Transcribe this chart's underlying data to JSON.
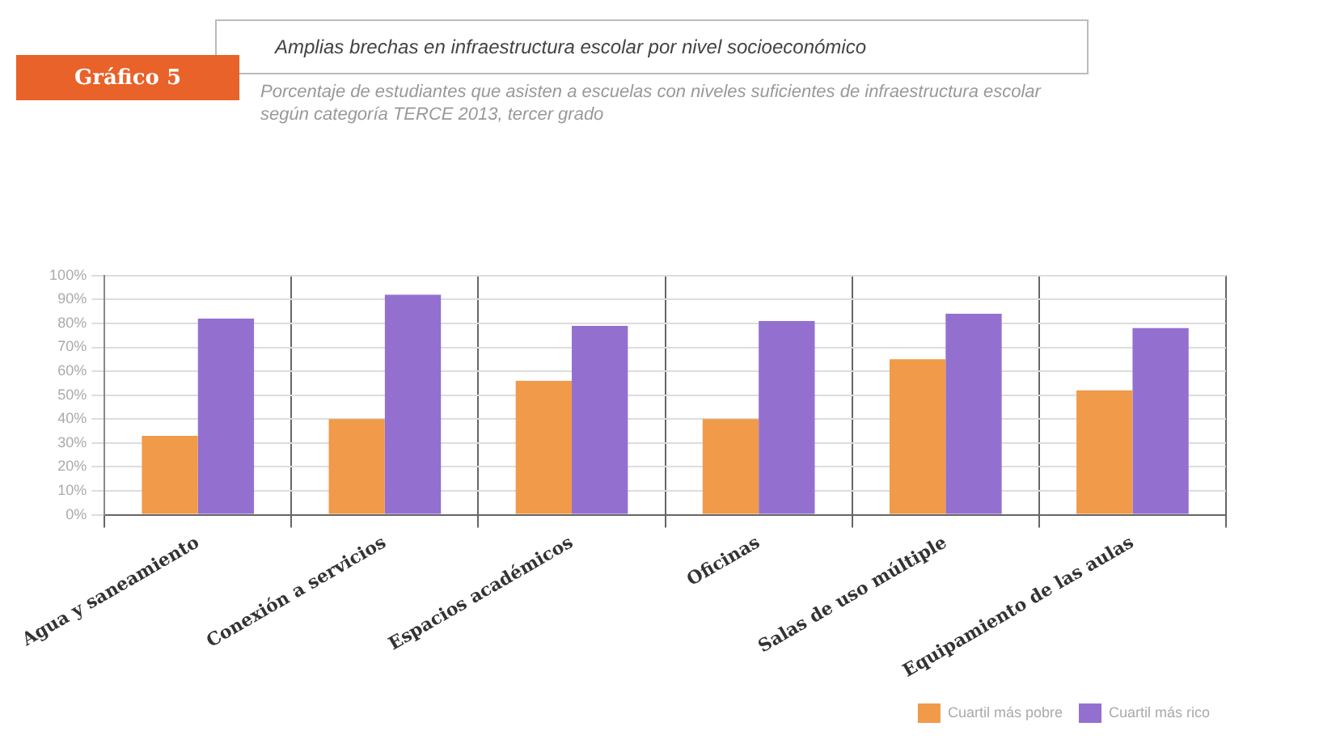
{
  "chart_data": {
    "type": "bar",
    "title": "Amplias brechas en infraestructura escolar por nivel socioeconómico",
    "subtitle": "Porcentaje de estudiantes que asisten a escuelas con niveles suficientes de infraestructura escolar según categoría TERCE 2013, tercer grado",
    "annotations": [
      "Gráfico 5"
    ],
    "categories": [
      "Agua y saneamiento",
      "Conexión a servicios",
      "Espacios académicos",
      "Oficinas",
      "Salas de uso múltiple",
      "Equipamiento de las aulas"
    ],
    "series": [
      {
        "name": "Cuartil más pobre",
        "color": "#f09a4a",
        "values": [
          33,
          40,
          56,
          40,
          65,
          52
        ]
      },
      {
        "name": "Cuartil más rico",
        "color": "#9370d0",
        "values": [
          82,
          92,
          79,
          81,
          84,
          78
        ]
      }
    ],
    "ylim": [
      0,
      100
    ],
    "yticks": [
      {
        "value": 0,
        "label": "0%"
      },
      {
        "value": 10,
        "label": "10%"
      },
      {
        "value": 20,
        "label": "20%"
      },
      {
        "value": 30,
        "label": "30%"
      },
      {
        "value": 40,
        "label": "40%"
      },
      {
        "value": 50,
        "label": "50%"
      },
      {
        "value": 60,
        "label": "60%"
      },
      {
        "value": 70,
        "label": "70%"
      },
      {
        "value": 80,
        "label": "80%"
      },
      {
        "value": 90,
        "label": "90%"
      },
      {
        "value": 100,
        "label": "100%"
      }
    ],
    "grid": true,
    "legend": "bottom right"
  }
}
